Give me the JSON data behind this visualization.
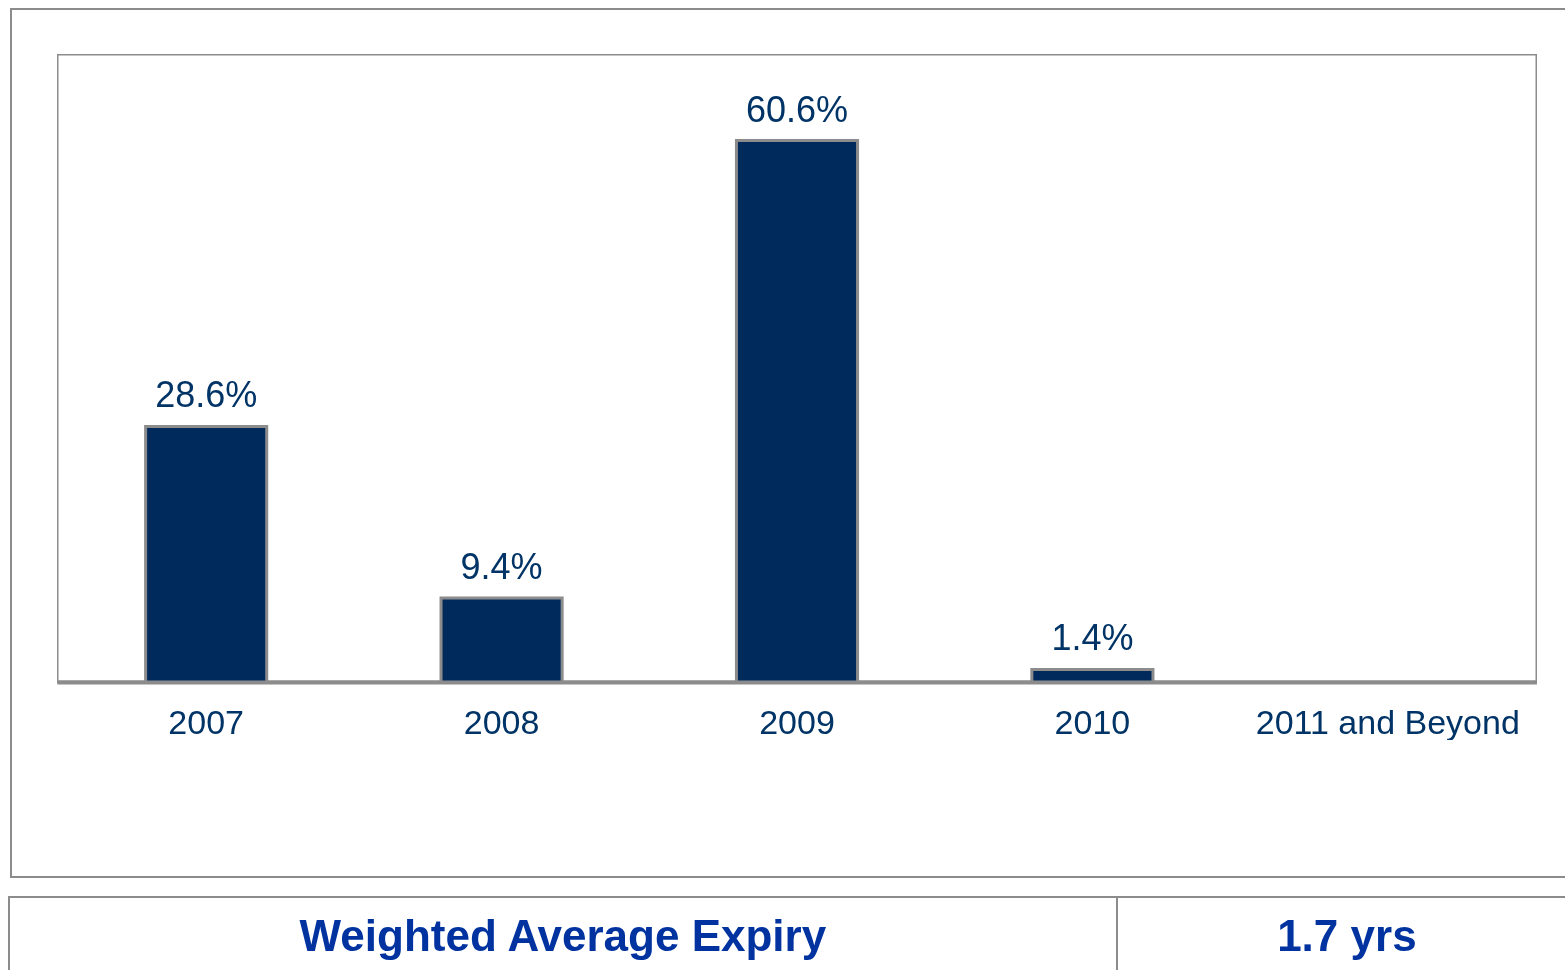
{
  "chart_data": {
    "type": "bar",
    "categories": [
      "2007",
      "2008",
      "2009",
      "2010",
      "2011 and Beyond"
    ],
    "values": [
      28.6,
      9.4,
      60.6,
      1.4,
      null
    ],
    "value_labels": [
      "28.6%",
      "9.4%",
      "60.6%",
      "1.4%",
      null
    ],
    "color": "#002a5c",
    "annotations": [
      "Weighted Average Expiry",
      "1.7 yrs"
    ]
  }
}
